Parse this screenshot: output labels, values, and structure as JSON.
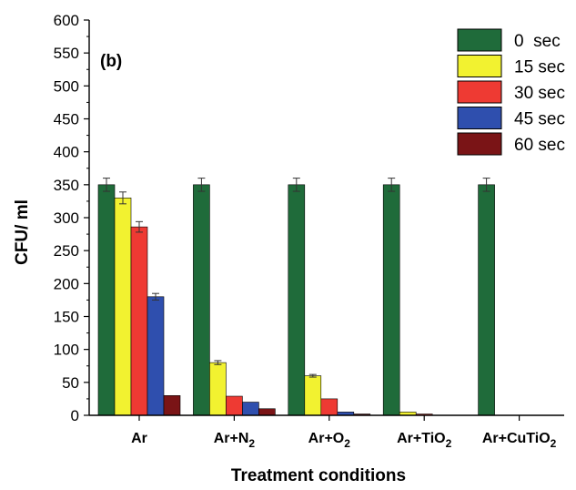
{
  "chart_data": {
    "type": "bar",
    "panel_label": "(b)",
    "xlabel": "Treatment conditions",
    "ylabel": "CFU/ ml",
    "ylim": [
      0,
      600
    ],
    "yticks": [
      0,
      50,
      100,
      150,
      200,
      250,
      300,
      350,
      400,
      450,
      500,
      550,
      600
    ],
    "categories": [
      {
        "base": "Ar",
        "sub": ""
      },
      {
        "base": "Ar+N",
        "sub": "2"
      },
      {
        "base": "Ar+O",
        "sub": "2"
      },
      {
        "base": "Ar+TiO",
        "sub": "2"
      },
      {
        "base": "Ar+CuTiO",
        "sub": "2"
      }
    ],
    "series": [
      {
        "name": "0  sec",
        "color": "#1f6b3a",
        "values": [
          350,
          350,
          350,
          350,
          350
        ],
        "errors": [
          10,
          10,
          10,
          10,
          10
        ]
      },
      {
        "name": "15 sec",
        "color": "#f2f230",
        "values": [
          330,
          80,
          60,
          5,
          0
        ],
        "errors": [
          9,
          3,
          2,
          0,
          0
        ]
      },
      {
        "name": "30 sec",
        "color": "#ee3a33",
        "values": [
          286,
          29,
          25,
          2,
          0
        ],
        "errors": [
          8,
          0,
          0,
          0,
          0
        ]
      },
      {
        "name": "45 sec",
        "color": "#2f4fae",
        "values": [
          180,
          20,
          5,
          0,
          0
        ],
        "errors": [
          5,
          0,
          0,
          0,
          0
        ]
      },
      {
        "name": "60 sec",
        "color": "#7a1416",
        "values": [
          30,
          10,
          2,
          0,
          0
        ],
        "errors": [
          0,
          0,
          0,
          0,
          0
        ]
      }
    ],
    "grid": false,
    "legend_position": "top-right"
  }
}
